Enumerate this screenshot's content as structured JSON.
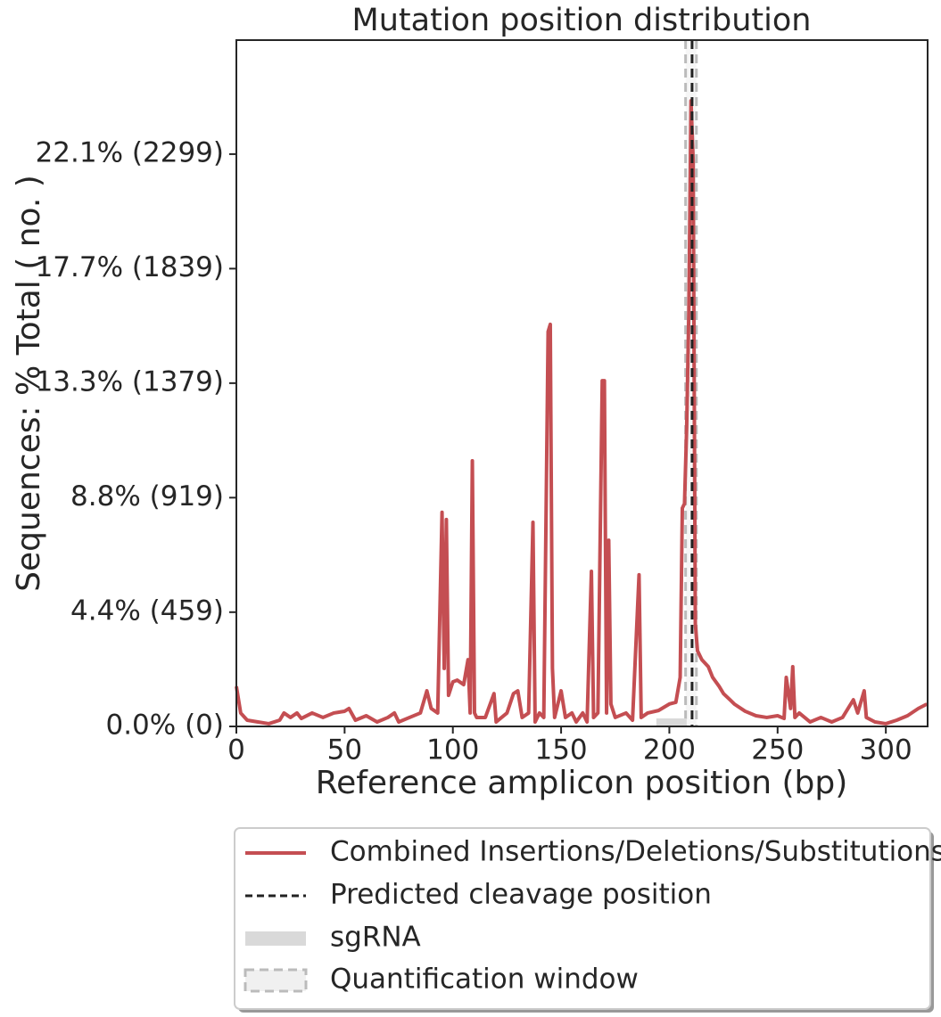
{
  "chart_data": {
    "type": "line",
    "title": "Mutation position distribution",
    "xlabel": "Reference amplicon position (bp)",
    "ylabel": "Sequences: % Total ( no. )",
    "xlim": [
      0,
      319.3
    ],
    "ylim": [
      0,
      2757
    ],
    "xticks": [
      0,
      50,
      100,
      150,
      200,
      250,
      300
    ],
    "yticks": [
      {
        "value": 0,
        "label": "0.0% (0)"
      },
      {
        "value": 459,
        "label": "4.4% (459)"
      },
      {
        "value": 919,
        "label": "8.8% (919)"
      },
      {
        "value": 1379,
        "label": "13.3% (1379)"
      },
      {
        "value": 1839,
        "label": "17.7% (1839)"
      },
      {
        "value": 2299,
        "label": "22.1% (2299)"
      }
    ],
    "series": [
      {
        "name": "Combined Insertions/Deletions/Substitutions",
        "color": "#c44e52",
        "x": [
          0,
          2,
          5,
          10,
          15,
          20,
          22,
          25,
          28,
          30,
          35,
          40,
          45,
          50,
          52,
          55,
          60,
          65,
          70,
          73,
          75,
          80,
          85,
          88,
          90,
          93,
          95,
          96,
          97,
          98,
          100,
          102,
          105,
          107,
          108,
          109,
          110,
          111,
          115,
          119,
          120,
          125,
          128,
          130,
          132,
          135,
          137,
          138,
          140,
          142,
          144,
          145,
          146,
          147,
          150,
          152,
          155,
          157,
          160,
          162,
          164,
          165,
          167,
          169,
          170,
          171,
          172,
          173,
          175,
          180,
          183,
          186,
          187,
          190,
          195,
          200,
          203,
          205,
          206,
          207,
          208,
          209,
          210,
          211,
          212,
          213,
          215,
          218,
          220,
          223,
          225,
          228,
          230,
          235,
          240,
          245,
          250,
          253,
          254,
          256,
          257,
          258,
          260,
          265,
          270,
          275,
          280,
          285,
          287,
          290,
          291,
          295,
          300,
          305,
          310,
          315,
          319
        ],
        "values": [
          161,
          54,
          25,
          18,
          11,
          25,
          54,
          36,
          54,
          32,
          54,
          36,
          54,
          61,
          72,
          25,
          43,
          18,
          36,
          54,
          18,
          36,
          54,
          143,
          72,
          54,
          860,
          233,
          831,
          125,
          179,
          186,
          168,
          268,
          54,
          1067,
          54,
          36,
          36,
          132,
          18,
          54,
          132,
          143,
          36,
          54,
          820,
          18,
          54,
          36,
          1586,
          1615,
          233,
          36,
          143,
          36,
          54,
          18,
          54,
          18,
          623,
          36,
          54,
          1389,
          1389,
          54,
          748,
          90,
          36,
          54,
          25,
          609,
          36,
          54,
          64,
          90,
          97,
          197,
          877,
          895,
          1200,
          1665,
          2513,
          2273,
          412,
          304,
          268,
          240,
          197,
          161,
          132,
          107,
          90,
          61,
          43,
          36,
          43,
          32,
          197,
          72,
          240,
          36,
          54,
          18,
          36,
          18,
          36,
          107,
          54,
          143,
          36,
          18,
          11,
          25,
          43,
          72,
          90
        ]
      }
    ],
    "cleavage": {
      "name": "Predicted cleavage position",
      "x": 210.5,
      "color": "#222222"
    },
    "sgrna": {
      "name": "sgRNA",
      "x": [
        194,
        208
      ],
      "color": "#d9d9d9"
    },
    "quantification_window": {
      "name": "Quantification window",
      "x": [
        207.5,
        212.5
      ],
      "color": "#bbbbbb"
    }
  }
}
